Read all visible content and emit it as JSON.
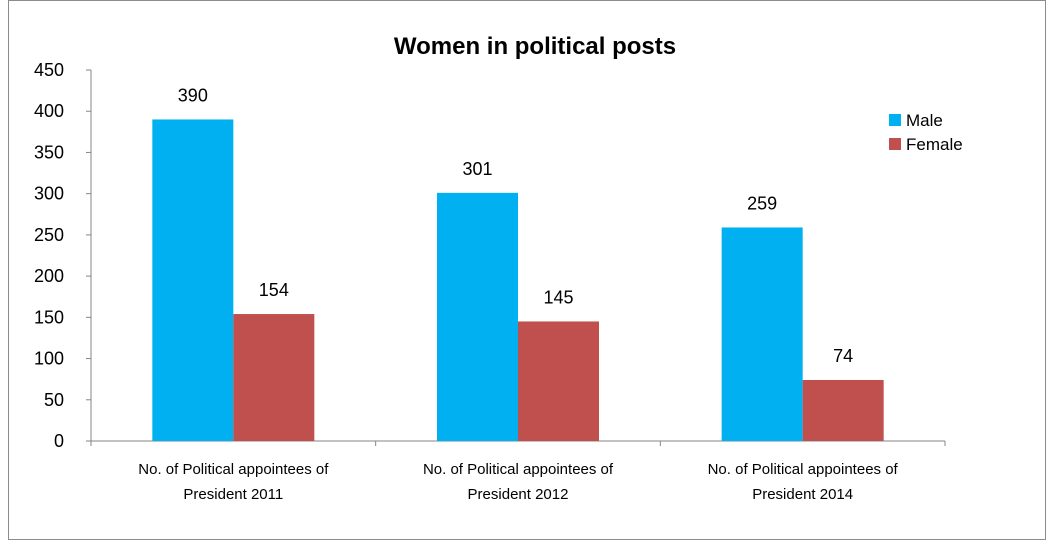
{
  "chart_data": {
    "type": "bar",
    "title": "Women in political posts",
    "categories": [
      [
        "No. of Political appointees of",
        "President 2011"
      ],
      [
        "No. of Political appointees of",
        "President 2012"
      ],
      [
        "No. of Political appointees of",
        "President 2014"
      ]
    ],
    "series": [
      {
        "name": "Male",
        "values": [
          390,
          301,
          259
        ],
        "color": "#00B0F0"
      },
      {
        "name": "Female",
        "values": [
          154,
          145,
          74
        ],
        "color": "#C0504D"
      }
    ],
    "ylim": [
      0,
      450
    ],
    "yticks": [
      0,
      50,
      100,
      150,
      200,
      250,
      300,
      350,
      400,
      450
    ],
    "xlabel": "",
    "ylabel": "",
    "grid": false,
    "legend": "top-right",
    "data_labels": true
  }
}
